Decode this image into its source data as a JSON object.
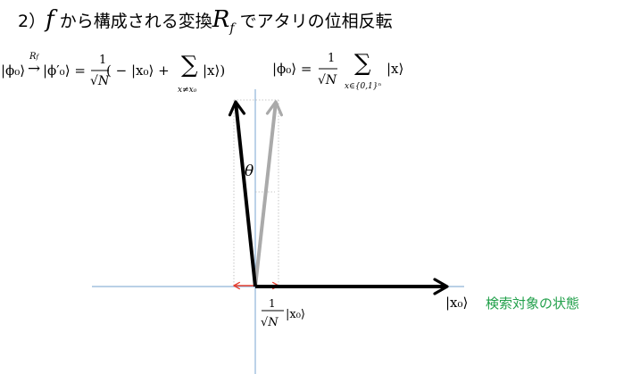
{
  "heading": {
    "prefix": "2）",
    "f_symbol": "f",
    "middle": " から構成される変換",
    "r_symbol": "R",
    "r_subscript": "f",
    "suffix": "  でアタリの位相反転"
  },
  "eq_left": {
    "lhs": "|ϕ₀⟩",
    "arrow_label": "R",
    "arrow_label_sub": "f",
    "arrow": "→",
    "rhs_state": "|ϕ′₀⟩ =",
    "frac_num": "1",
    "frac_den": "√N",
    "term1": "( − |x₀⟩ + ",
    "sum": "∑",
    "sum_under": "x≠x₀",
    "term2": "|x⟩)"
  },
  "eq_right": {
    "lhs": "|ϕ₀⟩ =",
    "frac_num": "1",
    "frac_den": "√N",
    "sum": "∑",
    "sum_under": "x∈{0,1}ⁿ",
    "term": "|x⟩"
  },
  "diagram": {
    "angle_label": "θ",
    "x0_label": "|x₀⟩",
    "x0_note": "検索対象の状態",
    "bottom_frac_num": "1",
    "bottom_frac_den": "√N",
    "bottom_term": "|x₀⟩",
    "colors": {
      "axis": "#8fb4d8",
      "main_arrow": "#000000",
      "ghost_arrow": "#aaaaaa",
      "small_arrow": "#e53e2f",
      "note": "#22a04b"
    }
  }
}
